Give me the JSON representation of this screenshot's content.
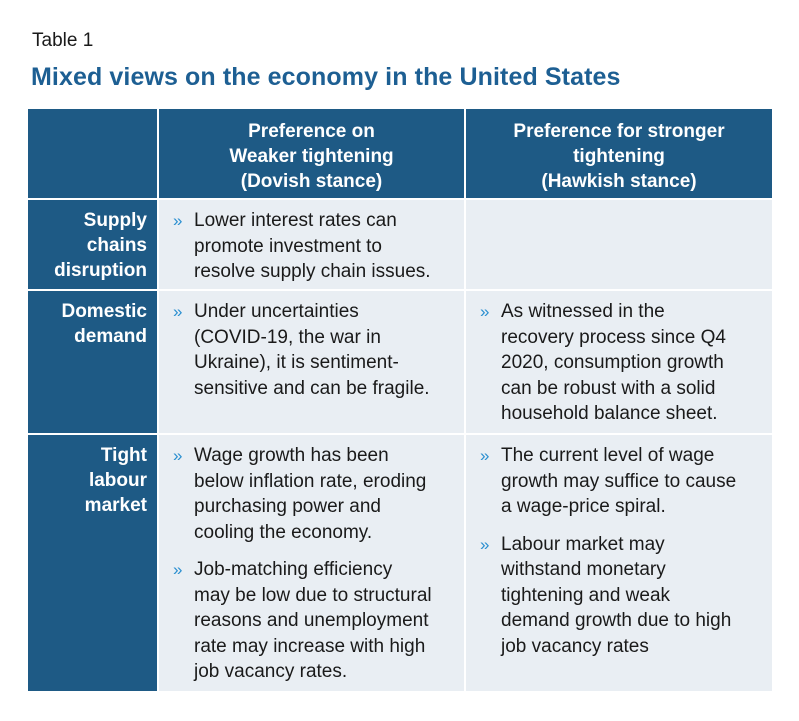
{
  "table_label": "Table 1",
  "title": "Mixed views on the economy in the United States",
  "headers": {
    "col1_lines": [
      "Preference on",
      "Weaker tightening",
      "(Dovish stance)"
    ],
    "col2_lines": [
      "Preference for stronger",
      "tightening",
      "(Hawkish stance)"
    ]
  },
  "bullet_glyph": "»",
  "rows": [
    {
      "label_lines": [
        "Supply",
        "chains",
        "disruption"
      ],
      "dovish": [
        [
          "Lower interest rates can",
          "promote investment to",
          "resolve supply chain issues."
        ]
      ],
      "hawkish": []
    },
    {
      "label_lines": [
        "Domestic",
        "demand"
      ],
      "dovish": [
        [
          "Under uncertainties",
          "(COVID-19, the war in",
          "Ukraine), it is sentiment-",
          "sensitive and can be fragile."
        ]
      ],
      "hawkish": [
        [
          "As witnessed in the",
          "recovery process since Q4",
          "2020, consumption growth",
          "can be robust with a solid",
          "household balance sheet."
        ]
      ]
    },
    {
      "label_lines": [
        "Tight",
        "labour",
        "market"
      ],
      "dovish": [
        [
          "Wage growth has been",
          "below inflation rate, eroding",
          "purchasing power and",
          "cooling the economy."
        ],
        [
          "Job-matching efficiency",
          "may be low due to structural",
          "reasons and unemployment",
          "rate may increase with high",
          "job vacancy rates."
        ]
      ],
      "hawkish": [
        [
          "The current level of wage",
          "growth may suffice to cause",
          "a wage-price spiral."
        ],
        [
          "Labour market may",
          "withstand monetary",
          "tightening and weak",
          "demand growth due to high",
          "job vacancy rates"
        ]
      ]
    }
  ]
}
